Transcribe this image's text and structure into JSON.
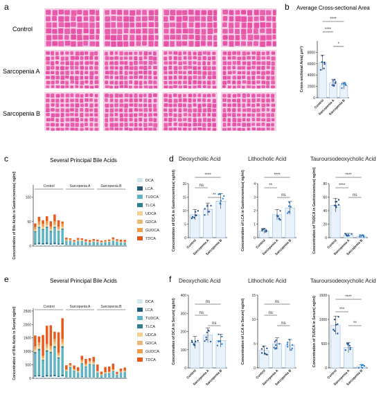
{
  "panel_letters": {
    "a": "a",
    "b": "b",
    "c": "c",
    "d": "d",
    "e": "e",
    "f": "f"
  },
  "histology": {
    "rows": [
      "Control",
      "Sarcopenia A",
      "Sarcopenia B"
    ],
    "tile_color": "#e64fa5",
    "background_color": "#f6cfe6"
  },
  "colors": {
    "control": "#1f4f8c",
    "sarcA": "#2a5ea8",
    "sarcB": "#2a7fd0",
    "bar_fill": "#e9f2fb",
    "DCA": "#cfe8ec",
    "LCA": "#1f5c78",
    "TUDCA": "#5fb3c3",
    "TLCA": "#2f7f91",
    "UDCA": "#f1d28f",
    "GDCA": "#e8b77a",
    "GUDCA": "#ef9b4a",
    "TDCA": "#e8591c"
  },
  "legend_items": [
    "DCA",
    "LCA",
    "TUDCA",
    "TLCA",
    "UDCA",
    "GDCA",
    "GUDCA",
    "TDCA"
  ],
  "chart_data": [
    {
      "id": "b",
      "type": "bar",
      "title": "Average Cross-sectional Area",
      "ylabel": "Cross-sectional Area( μm²)",
      "ylim": [
        0,
        10000
      ],
      "yticks": [
        "0",
        "2000",
        "4000",
        "6000",
        "8000"
      ],
      "categories": [
        "Control",
        "Sarcopenia A",
        "Sarcopenia B"
      ],
      "values": [
        6150,
        2600,
        2100
      ],
      "significance": [
        "****",
        "****",
        "*"
      ]
    },
    {
      "id": "c",
      "type": "bar",
      "title": "Several Principal Bile Acids",
      "ylabel": "Concentration of Bile Acids in Gastrocnemius( ng/ml)",
      "ylim": [
        0,
        125
      ],
      "yticks": [
        "0",
        "50",
        "100"
      ],
      "groups": [
        "Control",
        "Sarcopenia A",
        "Sarcopenia B"
      ]
    },
    {
      "id": "d1",
      "type": "bar",
      "title": "Deoxycholic Acid",
      "ylabel": "Concentration of DCA in Gastrocnemius( ng/ml)",
      "ylim": [
        0,
        20
      ],
      "yticks": [
        "0",
        "5",
        "10",
        "15",
        "20"
      ],
      "categories": [
        "Control",
        "Sarcopenia A",
        "Sarcopenia B"
      ],
      "values": [
        8.5,
        10.5,
        13.5
      ],
      "significance": [
        "****",
        "ns",
        "**"
      ]
    },
    {
      "id": "d2",
      "type": "bar",
      "title": "Lithocholic Acid",
      "ylabel": "Concentration of LCA in Gastrocnemius( ng/ml)",
      "ylim": [
        0,
        4
      ],
      "yticks": [
        "0",
        "1",
        "2",
        "3",
        "4"
      ],
      "categories": [
        "Control",
        "Sarcopenia A",
        "Sarcopenia B"
      ],
      "values": [
        0.5,
        1.7,
        2.2
      ],
      "significance": [
        "****",
        "**",
        "ns"
      ]
    },
    {
      "id": "d3",
      "type": "bar",
      "title": "Tauroursodeoxycholic Acid",
      "ylabel": "Concentration of TUDCA in Gastrocnemius( ng/ml)",
      "ylim": [
        0,
        80
      ],
      "yticks": [
        "0",
        "20",
        "40",
        "60",
        "80"
      ],
      "categories": [
        "Control",
        "Sarcopenia A",
        "Sarcopenia B"
      ],
      "values": [
        48,
        4,
        2
      ],
      "significance": [
        "****",
        "****",
        "ns"
      ]
    },
    {
      "id": "e",
      "type": "bar",
      "title": "Several Principal Bile Acids",
      "ylabel": "Concentration of Bile Acids in Serum( ng/ml)",
      "ylim": [
        0,
        2600
      ],
      "yticks": [
        "0",
        "500",
        "1000",
        "1500",
        "2000",
        "2500"
      ],
      "groups": [
        "Control",
        "Sarcopenia A",
        "Sarcopenia B"
      ]
    },
    {
      "id": "f1",
      "type": "bar",
      "title": "Deoxycholic Acid",
      "ylabel": "Concentration of DCA in Serum( ng/ml)",
      "ylim": [
        0,
        400
      ],
      "yticks": [
        "0",
        "100",
        "200",
        "300",
        "400"
      ],
      "categories": [
        "Control",
        "Sarcopenia A",
        "Sarcopenia B"
      ],
      "values": [
        140,
        180,
        150
      ],
      "significance": [
        "ns",
        "ns",
        "ns"
      ]
    },
    {
      "id": "f2",
      "type": "bar",
      "title": "Lithocholic Acid",
      "ylabel": "Concentration of LCA in Serum( ng/ml)",
      "ylim": [
        0,
        15
      ],
      "yticks": [
        "0",
        "5",
        "10",
        "15"
      ],
      "categories": [
        "Control",
        "Sarcopenia A",
        "Sarcopenia B"
      ],
      "values": [
        3.6,
        5.0,
        4.7
      ],
      "significance": [
        "ns",
        "ns",
        "ns"
      ]
    },
    {
      "id": "f3",
      "type": "bar",
      "title": "Tauroursodeoxycholic Acid",
      "ylabel": "Concentration of TUDCA in Serum( ng/ml)",
      "ylim": [
        0,
        1500
      ],
      "yticks": [
        "0",
        "500",
        "1000",
        "1500"
      ],
      "categories": [
        "Control",
        "Sarcopenia A",
        "Sarcopenia B"
      ],
      "values": [
        880,
        420,
        30
      ],
      "significance": [
        "****",
        "***",
        "**"
      ]
    }
  ]
}
